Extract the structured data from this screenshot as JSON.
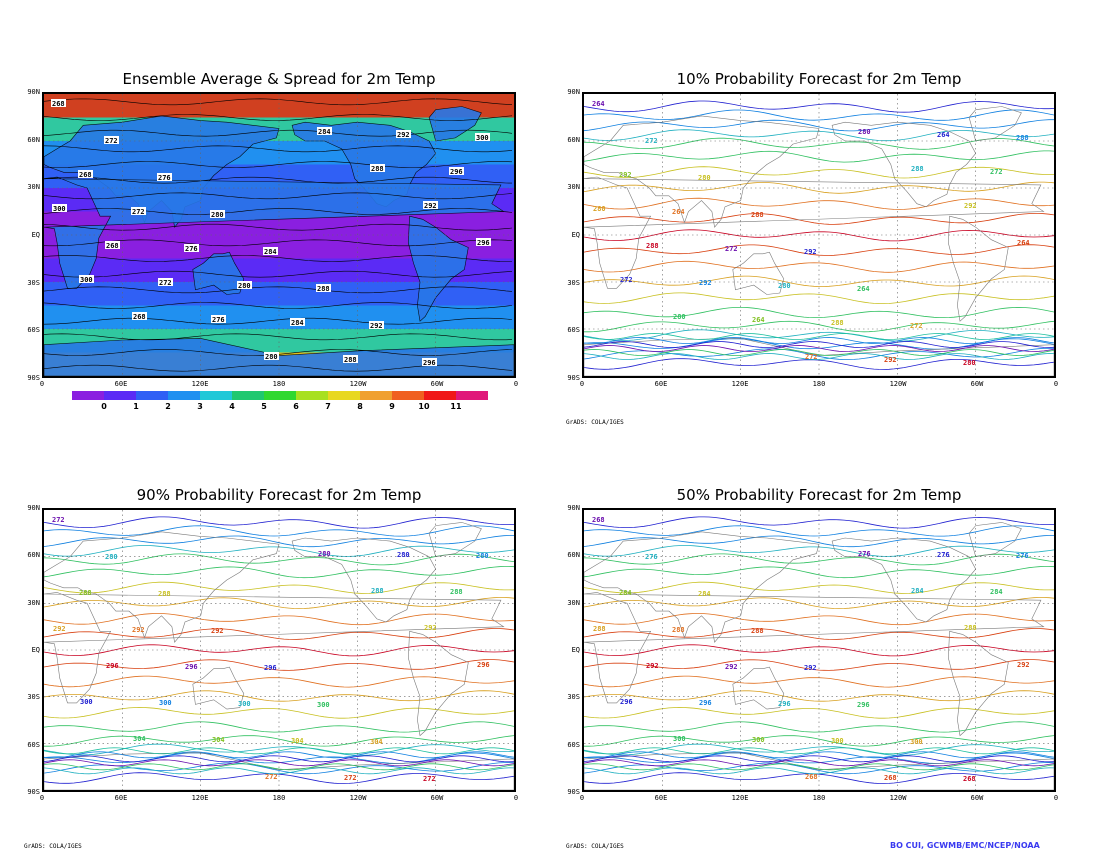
{
  "panels": [
    {
      "id": "spread",
      "title": "Ensemble Average & Spread for 2m Temp"
    },
    {
      "id": "p10",
      "title": "10% Probability Forecast for 2m Temp"
    },
    {
      "id": "p90",
      "title": "90% Probability Forecast for 2m Temp"
    },
    {
      "id": "p50",
      "title": "50% Probability Forecast for 2m Temp"
    }
  ],
  "lat_labels": [
    "90N",
    "60N",
    "30N",
    "EQ",
    "30S",
    "60S",
    "90S"
  ],
  "lon_labels": [
    "0",
    "60E",
    "120E",
    "180",
    "120W",
    "60W",
    "0"
  ],
  "colorbar": {
    "labels": [
      "0",
      "1",
      "2",
      "3",
      "4",
      "5",
      "6",
      "7",
      "8",
      "9",
      "10",
      "11"
    ],
    "colors": [
      "#8a1fe0",
      "#5b2bf5",
      "#3060f5",
      "#2090f0",
      "#20c8d8",
      "#20c870",
      "#30d830",
      "#a8e020",
      "#e8d820",
      "#f0a030",
      "#f06020",
      "#f01818",
      "#e0187a"
    ]
  },
  "contour_labels": {
    "spread": [
      "268",
      "272",
      "276",
      "280",
      "284",
      "288",
      "292",
      "296",
      "300"
    ],
    "p10": [
      "264",
      "272",
      "280",
      "288",
      "292"
    ],
    "p90": [
      "272",
      "280",
      "288",
      "292",
      "296",
      "300",
      "304"
    ],
    "p50": [
      "268",
      "276",
      "284",
      "288",
      "292",
      "296",
      "300"
    ]
  },
  "credits": {
    "grads_top": "GrADS: COLA/IGES",
    "grads_bl": "GrADS: COLA/IGES",
    "grads_br": "GrADS: COLA/IGES",
    "ncep": "BO CUI, GCWMB/EMC/NCEP/NOAA"
  }
}
